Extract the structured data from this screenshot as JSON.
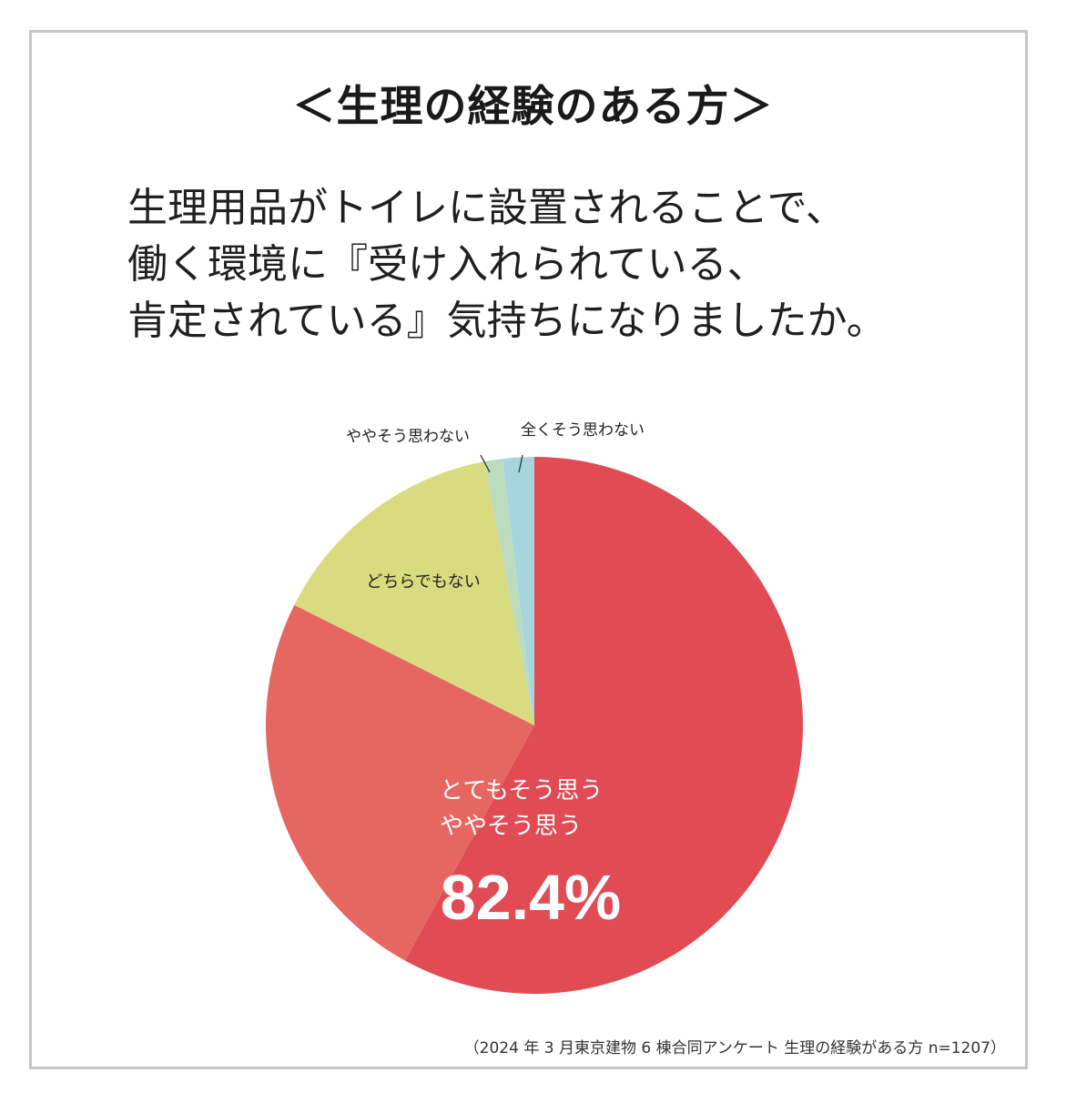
{
  "heading": "＜生理の経験のある方＞",
  "question": {
    "line1": "生理用品がトイレに設置されることで、",
    "line2": "働く環境に『受け入れられている、",
    "line3": "肯定されている』気持ちになりましたか。"
  },
  "highlight": {
    "line1": "とてもそう思う",
    "line2": "ややそう思う",
    "value": "82.4%"
  },
  "footnote": "（2024 年 3 月東京建物 6 棟合同アンケート 生理の経験がある方  n=1207）",
  "chart_data": {
    "type": "pie",
    "start_angle_deg": 0,
    "direction": "clockwise",
    "slices": [
      {
        "label": "とてもそう思う",
        "value": 58.0,
        "color": "#e14b53"
      },
      {
        "label": "ややそう思う",
        "value": 24.4,
        "color": "#e66661"
      },
      {
        "label": "どちらでもない",
        "value": 14.6,
        "color": "#d9db7f"
      },
      {
        "label": "ややそう思わない",
        "value": 1.1,
        "color": "#bcdcbd"
      },
      {
        "label": "全くそう思わない",
        "value": 1.9,
        "color": "#a7d5df"
      }
    ],
    "labels": {
      "neutral": "どちらでもない",
      "somewhat_disagree": "ややそう思わない",
      "strongly_disagree": "全くそう思わない"
    },
    "combined_value_label": "82.4%"
  }
}
